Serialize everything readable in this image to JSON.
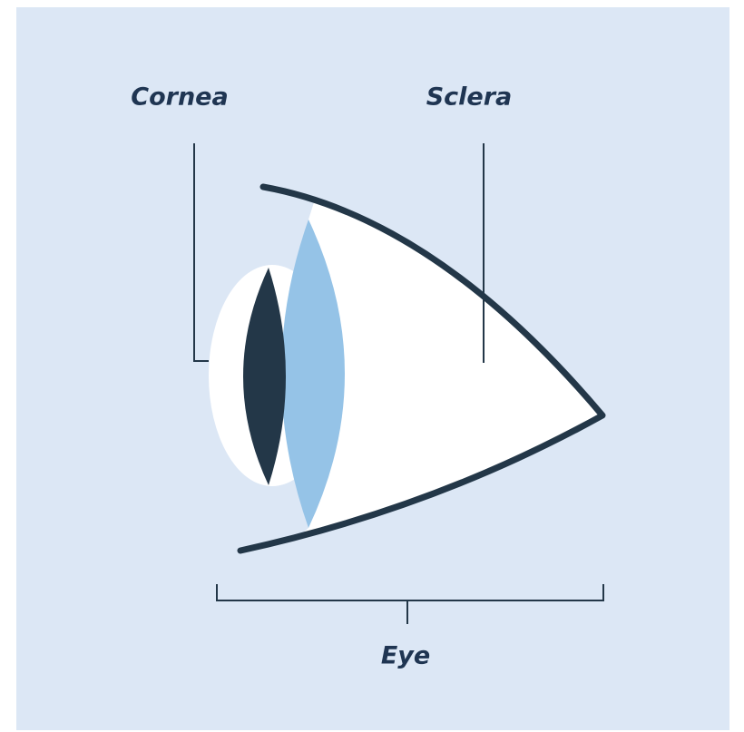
{
  "labels": {
    "cornea": "Cornea",
    "sclera": "Sclera",
    "eye": "Eye"
  }
}
